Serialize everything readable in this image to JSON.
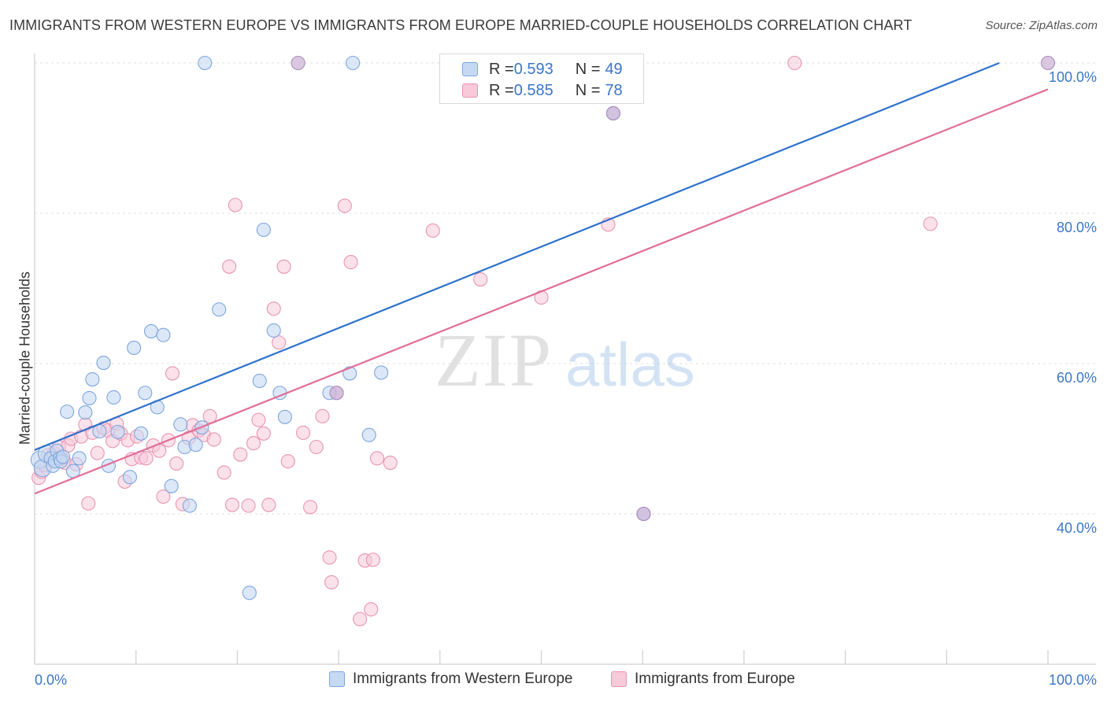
{
  "title": "IMMIGRANTS FROM WESTERN EUROPE VS IMMIGRANTS FROM EUROPE MARRIED-COUPLE HOUSEHOLDS CORRELATION CHART",
  "source": "Source: ZipAtlas.com",
  "watermark": {
    "zip": "ZIP",
    "atlas": "atlas"
  },
  "legend": {
    "r_label": "R = ",
    "n_label": "N = ",
    "western": {
      "r": "0.593",
      "n": "49"
    },
    "europe": {
      "r": "0.585",
      "n": "78"
    }
  },
  "colors": {
    "western_fill": "#c5d9f3",
    "western_stroke": "#7ea6dc",
    "western_line": "#2f72cc",
    "europe_fill": "#f8c9d8",
    "europe_stroke": "#e895b1",
    "europe_line": "#e06e98",
    "tick_label": "#3a76c8"
  },
  "chart_data": {
    "type": "scatter",
    "title": "IMMIGRANTS FROM WESTERN EUROPE VS IMMIGRANTS FROM EUROPE MARRIED-COUPLE HOUSEHOLDS CORRELATION CHART",
    "xlabel": "",
    "ylabel": "Married-couple Households",
    "xlim": [
      0,
      100
    ],
    "ylim": [
      20,
      100
    ],
    "x_tick_labels": [
      "0.0%",
      "100.0%"
    ],
    "y_tick_labels": [
      {
        "value": 100,
        "label": "100.0%"
      },
      {
        "value": 80,
        "label": "80.0%"
      },
      {
        "value": 60,
        "label": "60.0%"
      },
      {
        "value": 40,
        "label": "40.0%"
      }
    ],
    "grid": "horizontal dashed",
    "legend_position": "bottom-center",
    "series": [
      {
        "name": "Immigrants from Western Europe",
        "trend": {
          "x0": 0,
          "y0": 48.5,
          "x1": 95.2,
          "y1": 100
        },
        "points": [
          [
            0.5,
            47.2
          ],
          [
            0.8,
            46.1
          ],
          [
            1.2,
            48.0
          ],
          [
            1.6,
            47.4
          ],
          [
            1.8,
            46.4
          ],
          [
            2.0,
            47.0
          ],
          [
            2.2,
            48.4
          ],
          [
            2.5,
            47.4
          ],
          [
            2.6,
            47.0
          ],
          [
            2.8,
            47.6
          ],
          [
            3.2,
            53.6
          ],
          [
            3.8,
            45.7
          ],
          [
            4.4,
            47.4
          ],
          [
            5.0,
            53.5
          ],
          [
            5.4,
            55.4
          ],
          [
            5.7,
            57.9
          ],
          [
            6.4,
            51.0
          ],
          [
            6.8,
            60.1
          ],
          [
            7.3,
            46.4
          ],
          [
            7.8,
            55.5
          ],
          [
            8.2,
            50.9
          ],
          [
            9.4,
            44.9
          ],
          [
            9.8,
            62.1
          ],
          [
            10.5,
            50.7
          ],
          [
            10.9,
            56.1
          ],
          [
            11.5,
            64.3
          ],
          [
            12.1,
            54.2
          ],
          [
            12.7,
            63.8
          ],
          [
            13.5,
            43.7
          ],
          [
            14.4,
            51.9
          ],
          [
            14.8,
            48.9
          ],
          [
            15.3,
            41.1
          ],
          [
            15.9,
            49.2
          ],
          [
            16.5,
            51.5
          ],
          [
            16.8,
            100.0
          ],
          [
            18.2,
            67.2
          ],
          [
            21.2,
            29.5
          ],
          [
            22.2,
            57.7
          ],
          [
            22.6,
            77.8
          ],
          [
            23.6,
            64.4
          ],
          [
            24.2,
            56.1
          ],
          [
            24.7,
            52.9
          ],
          [
            29.1,
            56.1
          ],
          [
            31.1,
            58.7
          ],
          [
            31.4,
            100.0
          ],
          [
            33.0,
            50.5
          ],
          [
            34.2,
            58.8
          ],
          [
            57.1,
            93.3
          ],
          [
            60.1,
            40.0
          ]
        ]
      },
      {
        "name": "Immigrants from Europe",
        "trend": {
          "x0": 0,
          "y0": 42.7,
          "x1": 100,
          "y1": 96.5
        },
        "points": [
          [
            0.4,
            44.8
          ],
          [
            0.7,
            45.6
          ],
          [
            1.0,
            46.5
          ],
          [
            1.3,
            47.8
          ],
          [
            1.6,
            47.2
          ],
          [
            1.9,
            48.1
          ],
          [
            2.3,
            47.5
          ],
          [
            2.4,
            48.9
          ],
          [
            2.7,
            47.3
          ],
          [
            3.0,
            46.8
          ],
          [
            3.3,
            49.1
          ],
          [
            3.6,
            50.0
          ],
          [
            4.1,
            46.6
          ],
          [
            4.6,
            50.3
          ],
          [
            5.0,
            51.9
          ],
          [
            5.3,
            41.4
          ],
          [
            5.7,
            50.8
          ],
          [
            6.2,
            48.1
          ],
          [
            6.8,
            51.4
          ],
          [
            7.2,
            51.1
          ],
          [
            7.7,
            49.7
          ],
          [
            8.1,
            52.0
          ],
          [
            8.5,
            50.7
          ],
          [
            8.9,
            44.3
          ],
          [
            9.2,
            49.8
          ],
          [
            9.6,
            47.3
          ],
          [
            10.1,
            50.3
          ],
          [
            10.5,
            47.5
          ],
          [
            11.0,
            47.4
          ],
          [
            11.7,
            49.1
          ],
          [
            12.3,
            48.4
          ],
          [
            12.7,
            42.3
          ],
          [
            13.2,
            49.8
          ],
          [
            13.6,
            58.7
          ],
          [
            14.0,
            46.7
          ],
          [
            14.6,
            41.3
          ],
          [
            15.2,
            50.1
          ],
          [
            15.6,
            51.8
          ],
          [
            16.2,
            51.1
          ],
          [
            16.7,
            50.5
          ],
          [
            17.3,
            53.0
          ],
          [
            17.7,
            49.9
          ],
          [
            18.7,
            45.5
          ],
          [
            19.2,
            72.9
          ],
          [
            19.5,
            41.2
          ],
          [
            19.8,
            81.1
          ],
          [
            20.3,
            47.9
          ],
          [
            21.1,
            41.1
          ],
          [
            21.6,
            49.4
          ],
          [
            22.1,
            52.5
          ],
          [
            22.6,
            50.7
          ],
          [
            23.1,
            41.2
          ],
          [
            23.6,
            67.3
          ],
          [
            24.1,
            62.8
          ],
          [
            24.6,
            72.9
          ],
          [
            25.0,
            47.0
          ],
          [
            26.5,
            50.8
          ],
          [
            27.2,
            40.9
          ],
          [
            27.8,
            48.9
          ],
          [
            28.4,
            53.0
          ],
          [
            29.1,
            34.2
          ],
          [
            29.3,
            30.9
          ],
          [
            29.8,
            56.1
          ],
          [
            30.6,
            81.0
          ],
          [
            31.2,
            73.5
          ],
          [
            32.1,
            26.0
          ],
          [
            32.6,
            33.8
          ],
          [
            33.2,
            27.3
          ],
          [
            33.4,
            33.9
          ],
          [
            33.8,
            47.4
          ],
          [
            35.1,
            46.8
          ],
          [
            39.3,
            77.7
          ],
          [
            44.0,
            71.2
          ],
          [
            50.0,
            68.8
          ],
          [
            52.0,
            99.9
          ],
          [
            56.6,
            78.5
          ],
          [
            75.0,
            100.0
          ],
          [
            88.4,
            78.6
          ]
        ]
      }
    ],
    "combined_points": [
      [
        26.0,
        100.0
      ],
      [
        100.0,
        100.0
      ],
      [
        57.1,
        93.3
      ],
      [
        60.1,
        40.0
      ],
      [
        29.8,
        56.1
      ]
    ]
  },
  "bottom_legend": {
    "western": "Immigrants from Western Europe",
    "europe": "Immigrants from Europe"
  }
}
